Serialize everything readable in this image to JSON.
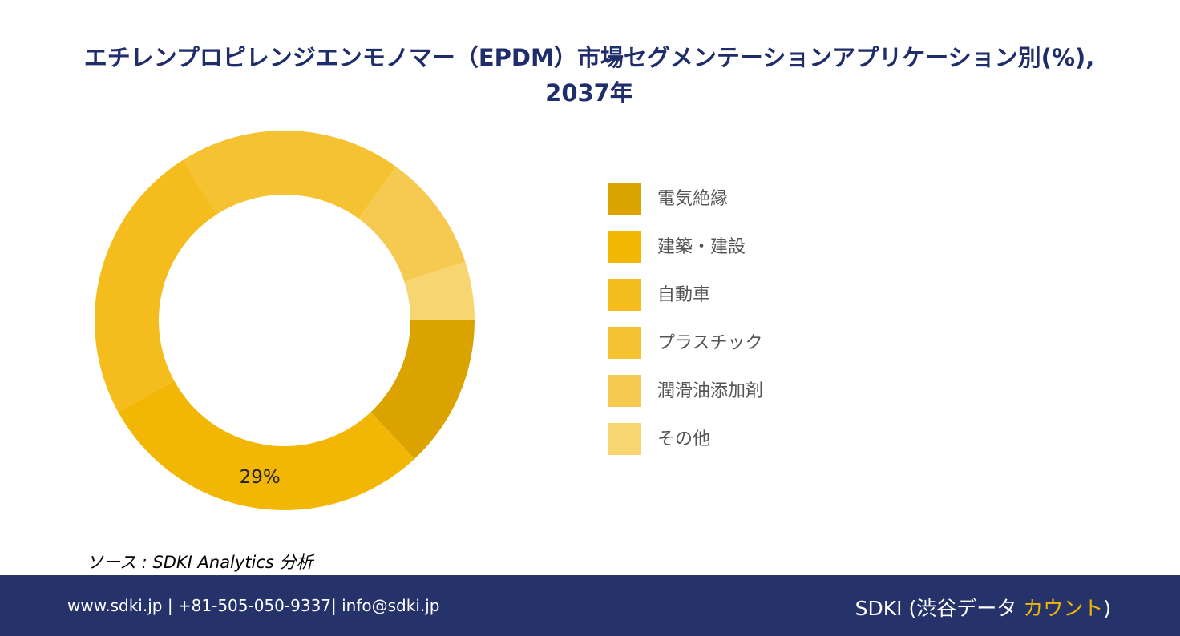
{
  "chart_data": {
    "type": "donut",
    "title": "エチレンプロピレンジエンモノマー（EPDM）市場セグメンテーションアプリケーション別(%), 2037年",
    "categories": [
      "電気絶縁",
      "建築・建設",
      "自動車",
      "プラスチック",
      "潤滑油添加剤",
      "その他"
    ],
    "values": [
      13,
      29,
      24,
      19,
      10,
      5
    ],
    "value_labels": [
      null,
      "29%",
      null,
      null,
      null,
      null
    ],
    "colors": [
      "#DAA300",
      "#F2B705",
      "#F4BC1C",
      "#F5C232",
      "#F6CA50",
      "#F7D570"
    ],
    "legend": "right"
  },
  "source": "ソース : SDKI Analytics 分析",
  "footer": {
    "contact": "www.sdki.jp | +81-505-050-9337| info@sdki.jp",
    "brand": [
      "SDKI (渋谷データ ",
      "カウント",
      ")"
    ]
  }
}
